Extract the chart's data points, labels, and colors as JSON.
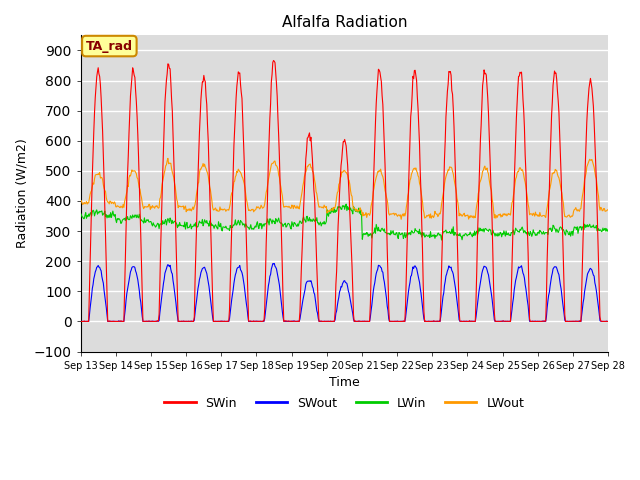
{
  "title": "Alfalfa Radiation",
  "xlabel": "Time",
  "ylabel": "Radiation (W/m2)",
  "ylim": [
    -100,
    950
  ],
  "yticks": [
    -100,
    0,
    100,
    200,
    300,
    400,
    500,
    600,
    700,
    800,
    900
  ],
  "bg_color": "#dcdcdc",
  "grid_color": "white",
  "legend_entries": [
    "SWin",
    "SWout",
    "LWin",
    "LWout"
  ],
  "legend_colors": [
    "#ff0000",
    "#0000ff",
    "#00cc00",
    "#ff9900"
  ],
  "annotation_text": "TA_rad",
  "annotation_bg": "#ffff99",
  "annotation_border": "#cc8800",
  "n_days": 15,
  "start_day": 13,
  "end_day": 28
}
